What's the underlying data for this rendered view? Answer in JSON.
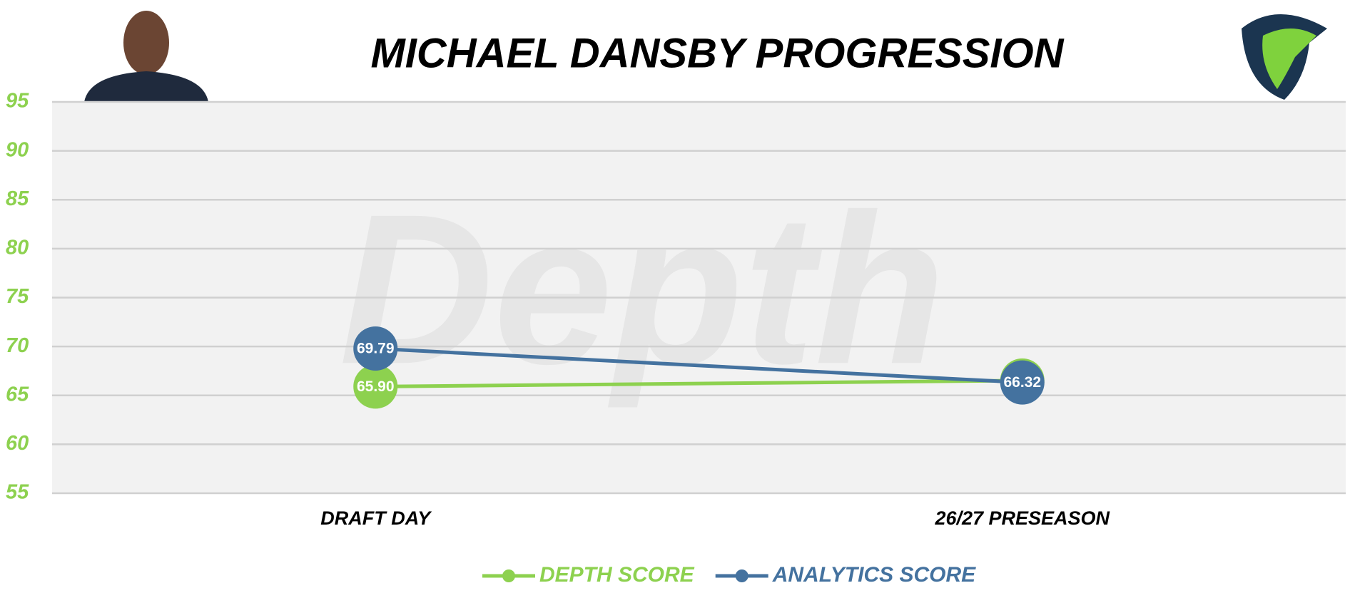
{
  "chart_data": {
    "type": "line",
    "title": "MICHAEL DANSBY PROGRESSION",
    "watermark": "Depth",
    "categories": [
      "DRAFT DAY",
      "26/27 PRESEASON"
    ],
    "series": [
      {
        "name": "DEPTH SCORE",
        "color": "#8dd14f",
        "values": [
          65.9,
          66.52
        ],
        "value_labels": [
          "65.90",
          "66.52"
        ]
      },
      {
        "name": "ANALYTICS SCORE",
        "color": "#44729f",
        "values": [
          69.79,
          66.32
        ],
        "value_labels": [
          "69.79",
          "66.32"
        ]
      }
    ],
    "ylim": [
      55,
      95
    ],
    "yticks": [
      55,
      60,
      65,
      70,
      75,
      80,
      85,
      90,
      95
    ],
    "grid": true,
    "ytick_color": "#8dd14f",
    "legend": "bottom"
  }
}
